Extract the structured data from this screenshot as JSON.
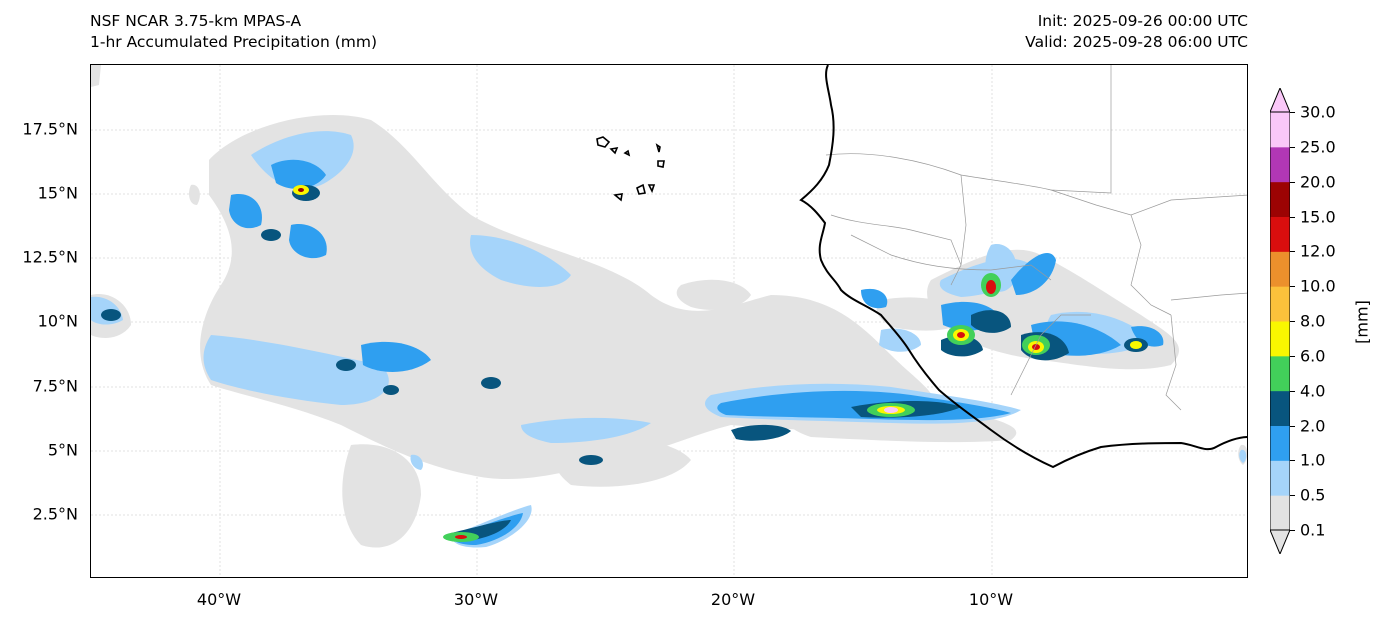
{
  "header": {
    "model": "NSF NCAR 3.75-km MPAS-A",
    "field": "1-hr Accumulated Precipitation (mm)",
    "init": "Init: 2025-09-26 00:00 UTC",
    "valid": "Valid: 2025-09-28 06:00 UTC"
  },
  "axes": {
    "lat_ticks": [
      "17.5°N",
      "15°N",
      "12.5°N",
      "10°N",
      "7.5°N",
      "5°N",
      "2.5°N"
    ],
    "lon_ticks": [
      "40°W",
      "30°W",
      "20°W",
      "10°W"
    ]
  },
  "colorbar": {
    "unit_label": "[mm]",
    "levels": [
      "0.1",
      "0.5",
      "1.0",
      "2.0",
      "4.0",
      "6.0",
      "8.0",
      "10.0",
      "12.0",
      "15.0",
      "20.0",
      "25.0",
      "30.0"
    ],
    "colors": [
      "#e3e3e3",
      "#a5d4fa",
      "#2f9ff0",
      "#08557e",
      "#42d05a",
      "#faf700",
      "#fcc13b",
      "#ec902c",
      "#d90e0e",
      "#9c0303",
      "#b137b5",
      "#fac8f8"
    ]
  },
  "colors": {
    "coastline": "#000000",
    "border": "#9a9a9a",
    "grid": "#d8d8d8"
  }
}
